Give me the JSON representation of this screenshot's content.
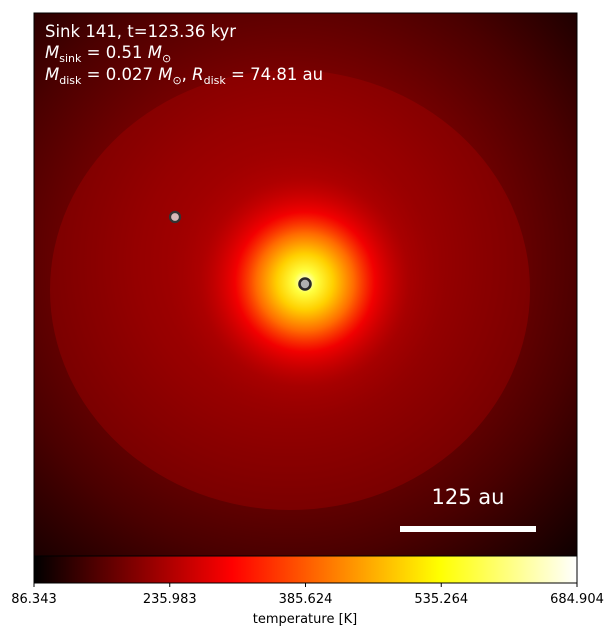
{
  "chart_data": {
    "type": "heatmap",
    "annotations": {
      "title_line": "Sink 141, t=123.36 kyr",
      "sink_mass": {
        "symbol": "M",
        "sub": "sink",
        "eq": " = 0.51 ",
        "unit": "M",
        "unit_sub": "⊙"
      },
      "disk_line": {
        "m_symbol": "M",
        "m_sub": "disk",
        "m_eq": " = 0.027 ",
        "m_unit": "M",
        "m_unit_sub": "⊙",
        "sep": ", ",
        "r_symbol": "R",
        "r_sub": "disk",
        "r_eq": " = 74.81 au"
      }
    },
    "scale_bar": {
      "label": "125 au",
      "length_au": 125
    },
    "sinks": [
      {
        "name": "primary",
        "fill": "#b0b0b0"
      },
      {
        "name": "secondary",
        "fill": "#d9b8b8"
      }
    ],
    "colorbar": {
      "label": "temperature [K]",
      "ticks": [
        "86.343",
        "235.983",
        "385.624",
        "535.264",
        "684.904"
      ],
      "range": [
        86.343,
        684.904
      ],
      "colormap": "hot"
    },
    "colors": {
      "black": "#000000",
      "dark_red": "#3a0000",
      "red": "#d80000",
      "orange": "#ff8c00",
      "yellow": "#ffff00",
      "white": "#ffffff"
    }
  }
}
